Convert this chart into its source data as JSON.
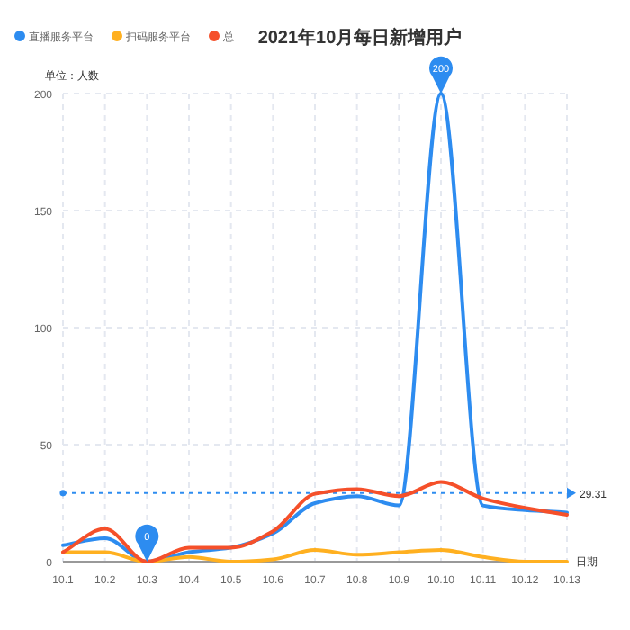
{
  "chart_data": {
    "type": "line",
    "title": "2021年10月每日新增用户",
    "xlabel": "日期",
    "ylabel": "单位：人数",
    "categories": [
      "10.1",
      "10.2",
      "10.3",
      "10.4",
      "10.5",
      "10.6",
      "10.7",
      "10.8",
      "10.9",
      "10.10",
      "10.11",
      "10.12",
      "10.13"
    ],
    "series": [
      {
        "name": "直播服务平台",
        "color": "#2d8cf0",
        "values": [
          7,
          10,
          0,
          4,
          6,
          12,
          25,
          28,
          24,
          200,
          24,
          22,
          21
        ]
      },
      {
        "name": "扫码服务平台",
        "color": "#ffb020",
        "values": [
          4,
          4,
          0,
          2,
          0,
          1,
          5,
          3,
          4,
          5,
          2,
          0,
          0
        ]
      },
      {
        "name": "总",
        "color": "#f5502a",
        "values": [
          4,
          14,
          0,
          6,
          6,
          13,
          29,
          31,
          28,
          34,
          27,
          23,
          20
        ]
      }
    ],
    "ylim": [
      0,
      200
    ],
    "yticks": [
      0,
      50,
      100,
      150,
      200
    ],
    "grid": true,
    "legend": "top left",
    "marker": "none",
    "line_style": "solid",
    "ref_lines": [
      {
        "axis": "y",
        "value": 29.31,
        "label": "29.31",
        "color": "#2d8cf0",
        "line_style": "dotted"
      }
    ],
    "annotations": [
      {
        "text": "0",
        "x": "10.3",
        "y": 0
      },
      {
        "text": "200",
        "x": "10.10",
        "y": 200
      }
    ]
  }
}
